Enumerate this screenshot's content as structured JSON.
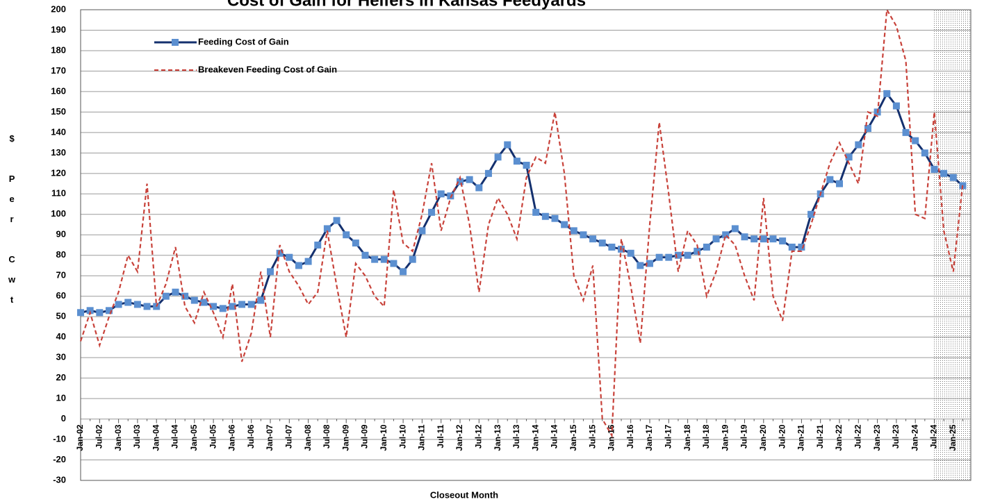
{
  "chart_data": {
    "type": "line",
    "title": "Cost of Gain for Heifers in Kansas Feedyards",
    "x_label": "Closeout Month",
    "y_label": "$ Per Cwt",
    "categories": [
      "Jan-02",
      null,
      "Jul-02",
      null,
      "Jan-03",
      null,
      "Jul-03",
      null,
      "Jan-04",
      null,
      "Jul-04",
      null,
      "Jan-05",
      null,
      "Jul-05",
      null,
      "Jan-06",
      null,
      "Jul-06",
      null,
      "Jan-07",
      null,
      "Jul-07",
      null,
      "Jan-08",
      null,
      "Jul-08",
      null,
      "Jan-09",
      null,
      "Jul-09",
      null,
      "Jan-10",
      null,
      "Jul-10",
      null,
      "Jan-11",
      null,
      "Jul-11",
      null,
      "Jan-12",
      null,
      "Jul-12",
      null,
      "Jan-13",
      null,
      "Jul-13",
      null,
      "Jan-14",
      null,
      "Jul-14",
      null,
      "Jan-15",
      null,
      "Jul-15",
      null,
      "Jan-16",
      null,
      "Jul-16",
      null,
      "Jan-17",
      null,
      "Jul-17",
      null,
      "Jan-18",
      null,
      "Jul-18",
      null,
      "Jan-19",
      null,
      "Jul-19",
      null,
      "Jan-20",
      null,
      "Jul-20",
      null,
      "Jan-21",
      null,
      "Jul-21",
      null,
      "Jan-22",
      null,
      "Jul-22",
      null,
      "Jan-23",
      null,
      "Jul-23",
      null,
      "Jan-24",
      null,
      "Jul-24",
      null,
      "Jan-25",
      null
    ],
    "series": [
      {
        "name": "Feeding Cost of Gain",
        "color": "#14306e",
        "marker_color": "#5b8fd0",
        "dashed": false,
        "values": [
          52,
          53,
          52,
          53,
          56,
          57,
          56,
          55,
          55,
          60,
          62,
          60,
          58,
          57,
          55,
          54,
          55,
          56,
          56,
          58,
          72,
          81,
          79,
          75,
          77,
          85,
          93,
          97,
          90,
          86,
          80,
          78,
          78,
          76,
          72,
          78,
          92,
          101,
          110,
          109,
          116,
          117,
          113,
          120,
          128,
          134,
          126,
          124,
          101,
          99,
          98,
          95,
          92,
          90,
          88,
          86,
          84,
          83,
          81,
          75,
          76,
          79,
          79,
          80,
          80,
          82,
          84,
          88,
          90,
          93,
          89,
          88,
          88,
          88,
          87,
          84,
          84,
          100,
          110,
          117,
          115,
          128,
          134,
          142,
          150,
          159,
          153,
          140,
          136,
          130,
          122,
          120,
          118,
          114
        ]
      },
      {
        "name": "Breakeven Feeding Cost of Gain",
        "color": "#c8423a",
        "dashed": true,
        "values": [
          38,
          52,
          36,
          50,
          62,
          80,
          72,
          115,
          55,
          66,
          84,
          55,
          47,
          62,
          52,
          40,
          66,
          28,
          42,
          72,
          40,
          85,
          72,
          65,
          56,
          62,
          92,
          65,
          40,
          76,
          70,
          60,
          55,
          112,
          86,
          82,
          100,
          125,
          92,
          108,
          118,
          95,
          62,
          95,
          108,
          100,
          88,
          118,
          128,
          125,
          150,
          120,
          70,
          58,
          75,
          0,
          -8,
          88,
          65,
          37,
          95,
          145,
          110,
          72,
          92,
          85,
          60,
          72,
          90,
          85,
          70,
          58,
          108,
          60,
          48,
          82,
          82,
          95,
          110,
          125,
          135,
          125,
          115,
          150,
          148,
          200,
          192,
          175,
          100,
          98,
          150,
          92,
          72,
          115
        ]
      }
    ],
    "ylim": [
      -30,
      200
    ],
    "yticks": [
      -30,
      -20,
      -10,
      0,
      10,
      20,
      30,
      40,
      50,
      60,
      70,
      80,
      90,
      100,
      110,
      120,
      130,
      140,
      150,
      160,
      170,
      180,
      190,
      200
    ],
    "grid": true,
    "legend": "upper left"
  }
}
